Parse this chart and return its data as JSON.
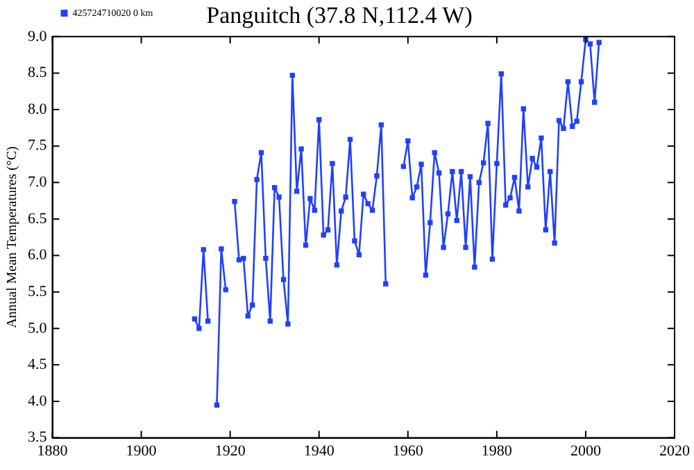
{
  "chart_data": {
    "type": "line",
    "title": "Panguitch (37.8 N,112.4 W)",
    "ylabel": "Annual Mean Temperatures (°C)",
    "x": [
      1912,
      1913,
      1914,
      1915,
      1916,
      1917,
      1918,
      1919,
      1920,
      1921,
      1922,
      1923,
      1924,
      1925,
      1926,
      1927,
      1928,
      1929,
      1930,
      1931,
      1932,
      1933,
      1934,
      1935,
      1936,
      1937,
      1938,
      1939,
      1940,
      1941,
      1942,
      1943,
      1944,
      1945,
      1946,
      1947,
      1948,
      1949,
      1950,
      1951,
      1952,
      1953,
      1954,
      1955,
      1956,
      1957,
      1958,
      1959,
      1960,
      1961,
      1962,
      1963,
      1964,
      1965,
      1966,
      1967,
      1968,
      1969,
      1970,
      1971,
      1972,
      1973,
      1974,
      1975,
      1976,
      1977,
      1978,
      1979,
      1980,
      1981,
      1982,
      1983,
      1984,
      1985,
      1986,
      1987,
      1988,
      1989,
      1990,
      1991,
      1992,
      1993,
      1994,
      1995,
      1996,
      1997,
      1998,
      1999,
      2000,
      2001,
      2002,
      2003
    ],
    "series": [
      {
        "name": "425724710020 0 km",
        "color": "#2040ff",
        "values": [
          5.13,
          5.0,
          6.08,
          5.1,
          null,
          3.95,
          6.09,
          5.53,
          null,
          6.74,
          5.94,
          5.96,
          5.17,
          5.32,
          7.04,
          7.41,
          5.96,
          5.1,
          6.93,
          6.8,
          5.67,
          5.06,
          8.47,
          6.88,
          7.46,
          6.14,
          6.78,
          6.62,
          7.86,
          6.28,
          6.35,
          7.26,
          5.87,
          6.61,
          6.8,
          7.59,
          6.2,
          6.01,
          6.84,
          6.71,
          6.62,
          7.09,
          7.79,
          5.61,
          null,
          null,
          null,
          7.22,
          7.57,
          6.79,
          6.94,
          7.25,
          5.73,
          6.45,
          7.41,
          7.13,
          6.11,
          6.57,
          7.15,
          6.48,
          7.15,
          6.11,
          7.08,
          5.84,
          7.0,
          7.27,
          7.81,
          5.95,
          7.26,
          8.49,
          6.69,
          6.79,
          7.07,
          6.61,
          8.01,
          6.94,
          7.33,
          7.21,
          7.61,
          6.35,
          7.15,
          6.17,
          7.85,
          7.74,
          8.38,
          7.77,
          7.84,
          8.38,
          8.96,
          8.9,
          8.1,
          8.92
        ]
      }
    ],
    "xlim": [
      1880,
      2020
    ],
    "xticks": [
      1880,
      1900,
      1920,
      1940,
      1960,
      1980,
      2000,
      2020
    ],
    "ylim": [
      3.5,
      9.0
    ],
    "yticks": [
      {
        "value": 3.5,
        "label": "3.5"
      },
      {
        "value": 4,
        "label": "4.0"
      },
      {
        "value": 4.5,
        "label": "4.5"
      },
      {
        "value": 5,
        "label": "5.0"
      },
      {
        "value": 5.5,
        "label": "5.5"
      },
      {
        "value": 6,
        "label": "6.0"
      },
      {
        "value": 6.5,
        "label": "6.5"
      },
      {
        "value": 7,
        "label": "7.0"
      },
      {
        "value": 7.5,
        "label": "7.5"
      },
      {
        "value": 8,
        "label": "8.0"
      },
      {
        "value": 8.5,
        "label": "8.5"
      },
      {
        "value": 9,
        "label": "9.0"
      }
    ],
    "grid": false,
    "legend": "top left",
    "marker": "square",
    "line_style": "solid"
  }
}
